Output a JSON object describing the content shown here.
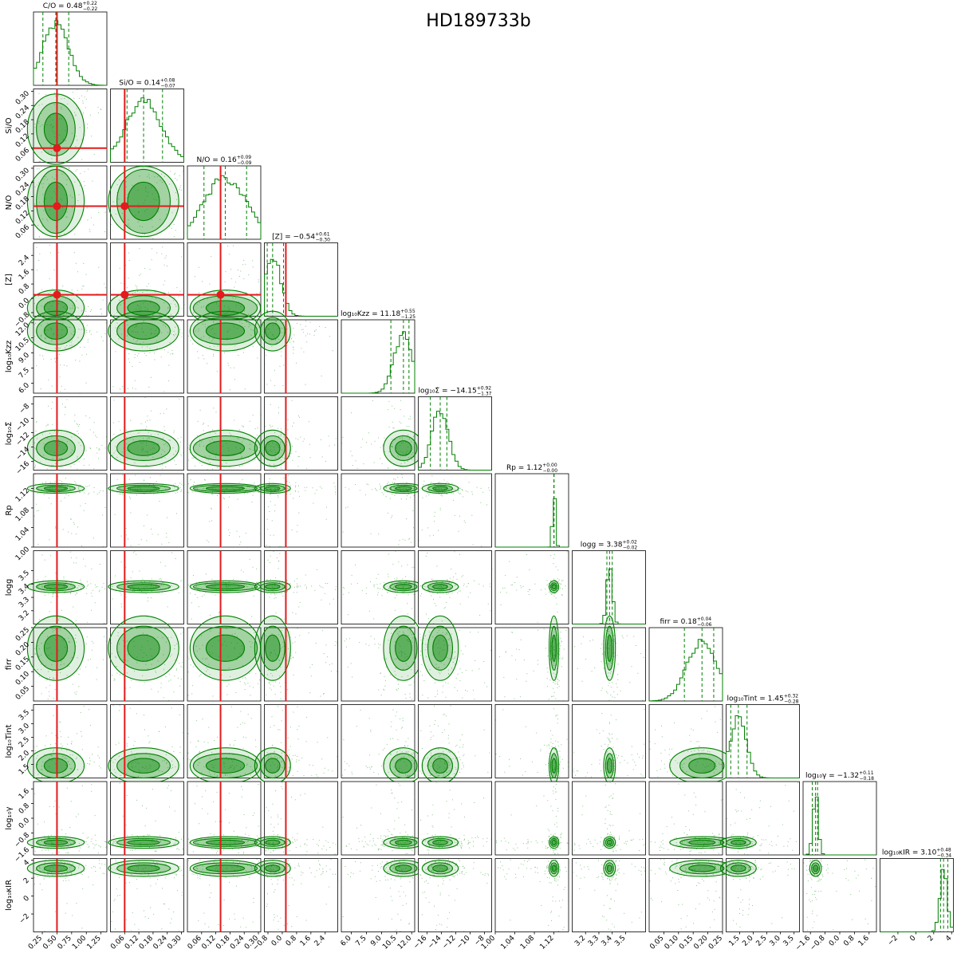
{
  "title": "HD189733b",
  "chart_data": {
    "type": "corner",
    "title": "HD189733b",
    "colors": {
      "samples": "#008000",
      "truth": "#e41a1c",
      "frame": "#000000"
    },
    "parameters": [
      {
        "label": "C/O",
        "title": "C/O = 0.48",
        "median": 0.48,
        "plus": 0.22,
        "minus": 0.22,
        "truth": 0.5,
        "range": [
          0.1,
          1.35
        ],
        "ticks": [
          "0.25",
          "0.50",
          "0.75",
          "1.00",
          "1.25"
        ],
        "tickvals": [
          0.25,
          0.5,
          0.75,
          1.0,
          1.25
        ]
      },
      {
        "label": "Si/O",
        "title": "Si/O = 0.14",
        "median": 0.14,
        "plus": 0.08,
        "minus": 0.07,
        "truth": 0.06,
        "range": [
          0.0,
          0.31
        ],
        "ticks": [
          "0.06",
          "0.12",
          "0.18",
          "0.24",
          "0.30"
        ],
        "tickvals": [
          0.06,
          0.12,
          0.18,
          0.24,
          0.3
        ]
      },
      {
        "label": "N/O",
        "title": "N/O = 0.16",
        "median": 0.16,
        "plus": 0.09,
        "minus": 0.09,
        "truth": 0.14,
        "range": [
          0.0,
          0.31
        ],
        "ticks": [
          "0.06",
          "0.12",
          "0.18",
          "0.24",
          "0.30"
        ],
        "tickvals": [
          0.06,
          0.12,
          0.18,
          0.24,
          0.3
        ]
      },
      {
        "label": "[Z]",
        "title": "[Z] = −0.54",
        "median": -0.54,
        "plus": 0.61,
        "minus": 0.3,
        "truth": 0.2,
        "range": [
          -1.0,
          3.1
        ],
        "ticks": [
          "−0.8",
          "0.0",
          "0.8",
          "1.6",
          "2.4"
        ],
        "tickvals": [
          -0.8,
          0.0,
          0.8,
          1.6,
          2.4
        ]
      },
      {
        "label": "log₁₀Kzz",
        "title": "log₁₀Kzz = 11.18",
        "median": 11.18,
        "plus": 0.55,
        "minus": 1.25,
        "truth": null,
        "range": [
          5.0,
          12.3
        ],
        "ticks": [
          "6.0",
          "7.5",
          "9.0",
          "10.5",
          "12.0"
        ],
        "tickvals": [
          6.0,
          7.5,
          9.0,
          10.5,
          12.0
        ]
      },
      {
        "label": "log₁₀Σ̃",
        "title": "log₁₀Σ̃ = −14.15",
        "median": -14.15,
        "plus": 0.92,
        "minus": 1.37,
        "truth": null,
        "range": [
          -17.2,
          -7.0
        ],
        "ticks": [
          "−16",
          "−14",
          "−12",
          "−10",
          "−8"
        ],
        "tickvals": [
          -16,
          -14,
          -12,
          -10,
          -8
        ]
      },
      {
        "label": "Rp",
        "title": "Rp = 1.12",
        "median": 1.12,
        "plus": 0.0,
        "minus": 0.0,
        "truth": null,
        "range": [
          1.0,
          1.15
        ],
        "ticks": [
          "1.00",
          "1.04",
          "1.08",
          "1.12"
        ],
        "tickvals": [
          1.0,
          1.04,
          1.08,
          1.12
        ]
      },
      {
        "label": "logg",
        "title": "logg = 3.38",
        "median": 3.38,
        "plus": 0.02,
        "minus": 0.02,
        "truth": null,
        "range": [
          3.1,
          3.65
        ],
        "ticks": [
          "3.2",
          "3.3",
          "3.4",
          "3.5"
        ],
        "tickvals": [
          3.2,
          3.3,
          3.4,
          3.5
        ]
      },
      {
        "label": "firr",
        "title": "firr = 0.18",
        "median": 0.18,
        "plus": 0.04,
        "minus": 0.06,
        "truth": null,
        "range": [
          0.0,
          0.25
        ],
        "ticks": [
          "0.05",
          "0.10",
          "0.15",
          "0.20",
          "0.25"
        ],
        "tickvals": [
          0.05,
          0.1,
          0.15,
          0.2,
          0.25
        ]
      },
      {
        "label": "log₁₀Tint",
        "title": "log₁₀Tint = 1.45",
        "median": 1.45,
        "plus": 0.32,
        "minus": 0.28,
        "truth": null,
        "range": [
          1.0,
          3.7
        ],
        "ticks": [
          "1.5",
          "2.0",
          "2.5",
          "3.0",
          "3.5"
        ],
        "tickvals": [
          1.5,
          2.0,
          2.5,
          3.0,
          3.5
        ]
      },
      {
        "label": "log₁₀γ",
        "title": "log₁₀γ = −1.32",
        "median": -1.32,
        "plus": 0.11,
        "minus": 0.18,
        "truth": null,
        "range": [
          -2.0,
          2.0
        ],
        "ticks": [
          "−1.6",
          "−0.8",
          "0.0",
          "0.8",
          "1.6"
        ],
        "tickvals": [
          -1.6,
          -0.8,
          0.0,
          0.8,
          1.6
        ]
      },
      {
        "label": "log₁₀κIR",
        "title": "log₁₀κIR = 3.10",
        "median": 3.1,
        "plus": 0.48,
        "minus": 0.34,
        "truth": null,
        "range": [
          -4.0,
          4.2
        ],
        "ticks": [
          "−2",
          "0",
          "2",
          "4"
        ],
        "tickvals": [
          -2,
          0,
          2,
          4
        ]
      }
    ]
  }
}
